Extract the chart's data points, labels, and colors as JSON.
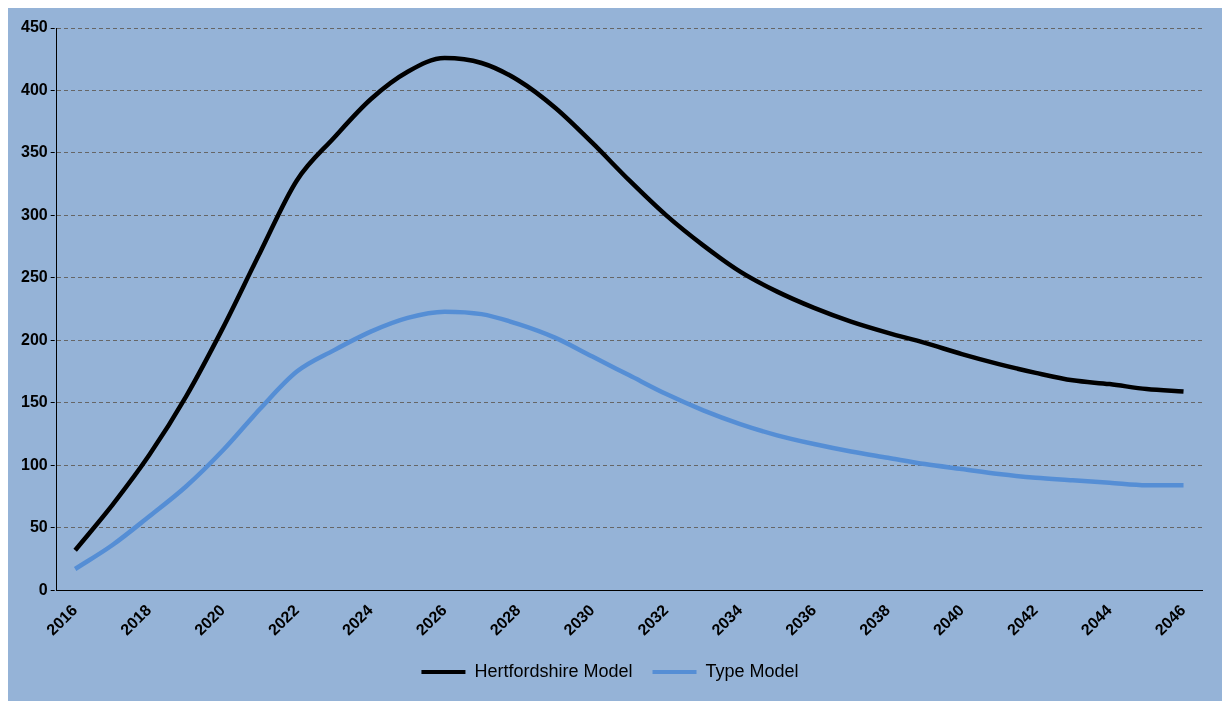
{
  "chart_data": {
    "type": "line",
    "categories": [
      "2016",
      null,
      "2018",
      null,
      "2020",
      null,
      "2022",
      null,
      "2024",
      null,
      "2026",
      null,
      "2028",
      null,
      "2030",
      null,
      "2032",
      null,
      "2034",
      null,
      "2036",
      null,
      "2038",
      null,
      "2040",
      null,
      "2042",
      null,
      "2044",
      null,
      "2046"
    ],
    "series": [
      {
        "name": "Hertfordshire Model",
        "color": "#000000",
        "values": [
          32,
          68,
          108,
          155,
          210,
          270,
          328,
          362,
          393,
          415,
          426,
          422,
          408,
          386,
          358,
          328,
          300,
          276,
          255,
          239,
          226,
          215,
          206,
          198,
          189,
          181,
          174,
          168,
          165,
          161,
          159
        ]
      },
      {
        "name": "Type Model",
        "color": "#558ed5",
        "values": [
          17,
          36,
          59,
          83,
          112,
          145,
          175,
          192,
          207,
          218,
          223,
          221,
          213,
          202,
          187,
          172,
          157,
          144,
          133,
          124,
          117,
          111,
          106,
          101,
          97,
          93,
          90,
          88,
          86,
          84,
          84
        ]
      }
    ],
    "ylim": [
      0,
      450
    ],
    "yticks": [
      0,
      50,
      100,
      150,
      200,
      250,
      300,
      350,
      400,
      450
    ],
    "grid": "y",
    "legend": "bottom",
    "marker": "none",
    "line_style": "solid"
  }
}
